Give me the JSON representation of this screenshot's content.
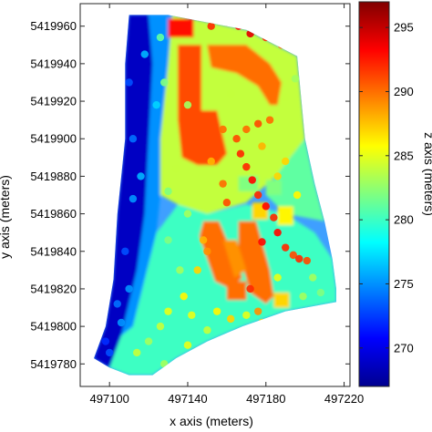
{
  "chart_data": {
    "type": "heatmap",
    "title": "",
    "xlabel": "x axis   (meters)",
    "ylabel": "y axis   (meters)",
    "colorbar_label": "z axis   (meters)",
    "xlim": [
      497085,
      497223
    ],
    "ylim": [
      5419768,
      5419972
    ],
    "x_ticks": [
      497100,
      497140,
      497180,
      497220
    ],
    "y_ticks": [
      5419780,
      5419800,
      5419820,
      5419840,
      5419860,
      5419880,
      5419900,
      5419920,
      5419940,
      5419960
    ],
    "colorbar_range": [
      267,
      297
    ],
    "colorbar_ticks": [
      270,
      275,
      280,
      285,
      290,
      295
    ],
    "colormap": "jet",
    "grid": false,
    "region_outline": [
      [
        497110,
        5419966
      ],
      [
        497130,
        5419966
      ],
      [
        497170,
        5419958
      ],
      [
        497196,
        5419944
      ],
      [
        497200,
        5419900
      ],
      [
        497205,
        5419876
      ],
      [
        497210,
        5419856
      ],
      [
        497214,
        5419836
      ],
      [
        497216,
        5419820
      ],
      [
        497216,
        5419813
      ],
      [
        497190,
        5419808
      ],
      [
        497168,
        5419800
      ],
      [
        497150,
        5419792
      ],
      [
        497134,
        5419783
      ],
      [
        497122,
        5419774
      ],
      [
        497110,
        5419774
      ],
      [
        497100,
        5419778
      ],
      [
        497092,
        5419783
      ],
      [
        497098,
        5419800
      ],
      [
        497102,
        5419825
      ],
      [
        497104,
        5419860
      ],
      [
        497108,
        5419900
      ],
      [
        497108,
        5419940
      ]
    ],
    "surface_patches": [
      {
        "shape": "poly",
        "z": 269,
        "pts": [
          [
            497110,
            5419966
          ],
          [
            497120,
            5419966
          ],
          [
            497122,
            5419940
          ],
          [
            497120,
            5419900
          ],
          [
            497118,
            5419860
          ],
          [
            497114,
            5419830
          ],
          [
            497106,
            5419795
          ],
          [
            497100,
            5419778
          ],
          [
            497092,
            5419783
          ],
          [
            497098,
            5419800
          ],
          [
            497102,
            5419825
          ],
          [
            497104,
            5419860
          ],
          [
            497108,
            5419900
          ],
          [
            497108,
            5419940
          ]
        ]
      },
      {
        "shape": "poly",
        "z": 275,
        "pts": [
          [
            497120,
            5419966
          ],
          [
            497132,
            5419966
          ],
          [
            497130,
            5419940
          ],
          [
            497126,
            5419900
          ],
          [
            497126,
            5419870
          ],
          [
            497124,
            5419850
          ],
          [
            497118,
            5419825
          ],
          [
            497112,
            5419800
          ],
          [
            497106,
            5419795
          ],
          [
            497114,
            5419830
          ],
          [
            497118,
            5419860
          ],
          [
            497120,
            5419900
          ],
          [
            497122,
            5419940
          ]
        ]
      },
      {
        "shape": "poly",
        "z": 280,
        "pts": [
          [
            497150,
            5419860
          ],
          [
            497170,
            5419865
          ],
          [
            497190,
            5419860
          ],
          [
            497205,
            5419850
          ],
          [
            497214,
            5419836
          ],
          [
            497216,
            5419820
          ],
          [
            497216,
            5419813
          ],
          [
            497190,
            5419808
          ],
          [
            497168,
            5419800
          ],
          [
            497150,
            5419792
          ],
          [
            497134,
            5419783
          ],
          [
            497122,
            5419774
          ],
          [
            497110,
            5419774
          ],
          [
            497100,
            5419778
          ],
          [
            497106,
            5419795
          ],
          [
            497112,
            5419800
          ],
          [
            497118,
            5419825
          ],
          [
            497124,
            5419850
          ],
          [
            497135,
            5419865
          ]
        ]
      },
      {
        "shape": "poly",
        "z": 284,
        "pts": [
          [
            497126,
            5419870
          ],
          [
            497135,
            5419865
          ],
          [
            497150,
            5419860
          ],
          [
            497170,
            5419866
          ],
          [
            497185,
            5419880
          ],
          [
            497200,
            5419900
          ],
          [
            497196,
            5419944
          ],
          [
            497170,
            5419958
          ],
          [
            497132,
            5419966
          ],
          [
            497130,
            5419940
          ],
          [
            497126,
            5419900
          ]
        ]
      },
      {
        "shape": "poly",
        "z": 281,
        "pts": [
          [
            497185,
            5419880
          ],
          [
            497200,
            5419900
          ],
          [
            497205,
            5419876
          ],
          [
            497210,
            5419856
          ],
          [
            497190,
            5419860
          ],
          [
            497180,
            5419870
          ]
        ]
      },
      {
        "shape": "rect",
        "z": 293,
        "x0": 497130,
        "y0": 5419954,
        "x1": 497143,
        "y1": 5419964
      },
      {
        "shape": "poly",
        "z": 291,
        "pts": [
          [
            497135,
            5419950
          ],
          [
            497147,
            5419950
          ],
          [
            497147,
            5419915
          ],
          [
            497155,
            5419915
          ],
          [
            497160,
            5419892
          ],
          [
            497155,
            5419886
          ],
          [
            497145,
            5419886
          ],
          [
            497137,
            5419890
          ],
          [
            497135,
            5419910
          ]
        ]
      },
      {
        "shape": "poly",
        "z": 290,
        "pts": [
          [
            497150,
            5419950
          ],
          [
            497170,
            5419950
          ],
          [
            497182,
            5419940
          ],
          [
            497188,
            5419930
          ],
          [
            497186,
            5419918
          ],
          [
            497182,
            5419918
          ],
          [
            497176,
            5419928
          ],
          [
            497165,
            5419935
          ],
          [
            497152,
            5419938
          ]
        ]
      },
      {
        "shape": "poly",
        "z": 290,
        "pts": [
          [
            497148,
            5419856
          ],
          [
            497156,
            5419856
          ],
          [
            497168,
            5419826
          ],
          [
            497162,
            5419820
          ],
          [
            497154,
            5419824
          ],
          [
            497146,
            5419848
          ]
        ]
      },
      {
        "shape": "poly",
        "z": 290,
        "pts": [
          [
            497166,
            5419856
          ],
          [
            497175,
            5419856
          ],
          [
            497182,
            5419830
          ],
          [
            497184,
            5419816
          ],
          [
            497180,
            5419812
          ],
          [
            497172,
            5419818
          ],
          [
            497166,
            5419840
          ]
        ]
      },
      {
        "shape": "poly",
        "z": 289,
        "pts": [
          [
            497158,
            5419846
          ],
          [
            497165,
            5419846
          ],
          [
            497170,
            5419830
          ],
          [
            497164,
            5419826
          ]
        ]
      },
      {
        "shape": "rect",
        "z": 290,
        "x0": 497160,
        "y0": 5419814,
        "x1": 497170,
        "y1": 5419824
      },
      {
        "shape": "rect",
        "z": 287,
        "x0": 497184,
        "y0": 5419810,
        "x1": 497192,
        "y1": 5419818
      },
      {
        "shape": "rect",
        "z": 286,
        "x0": 497186,
        "y0": 5419854,
        "x1": 497194,
        "y1": 5419864
      },
      {
        "shape": "rect",
        "z": 287,
        "x0": 497173,
        "y0": 5419857,
        "x1": 497181,
        "y1": 5419866
      },
      {
        "shape": "rect",
        "z": 282,
        "x0": 497166,
        "y0": 5419872,
        "x1": 497176,
        "y1": 5419880
      },
      {
        "shape": "rect",
        "z": 282,
        "x0": 497180,
        "y0": 5419870,
        "x1": 497188,
        "y1": 5419878
      }
    ],
    "points": [
      {
        "x": 497160,
        "y": 5419962,
        "z": 294
      },
      {
        "x": 497166,
        "y": 5419960,
        "z": 293
      },
      {
        "x": 497172,
        "y": 5419956,
        "z": 294
      },
      {
        "x": 497152,
        "y": 5419960,
        "z": 292
      },
      {
        "x": 497180,
        "y": 5419954,
        "z": 292
      },
      {
        "x": 497188,
        "y": 5419950,
        "z": 290
      },
      {
        "x": 497158,
        "y": 5419905,
        "z": 290
      },
      {
        "x": 497165,
        "y": 5419900,
        "z": 291
      },
      {
        "x": 497170,
        "y": 5419905,
        "z": 290
      },
      {
        "x": 497176,
        "y": 5419908,
        "z": 291
      },
      {
        "x": 497182,
        "y": 5419910,
        "z": 290
      },
      {
        "x": 497167,
        "y": 5419892,
        "z": 292
      },
      {
        "x": 497170,
        "y": 5419885,
        "z": 292
      },
      {
        "x": 497173,
        "y": 5419878,
        "z": 293
      },
      {
        "x": 497176,
        "y": 5419870,
        "z": 292
      },
      {
        "x": 497180,
        "y": 5419864,
        "z": 293
      },
      {
        "x": 497184,
        "y": 5419858,
        "z": 292
      },
      {
        "x": 497186,
        "y": 5419850,
        "z": 293
      },
      {
        "x": 497190,
        "y": 5419842,
        "z": 292
      },
      {
        "x": 497178,
        "y": 5419845,
        "z": 293
      },
      {
        "x": 497194,
        "y": 5419838,
        "z": 291
      },
      {
        "x": 497197,
        "y": 5419836,
        "z": 292
      },
      {
        "x": 497201,
        "y": 5419835,
        "z": 291
      },
      {
        "x": 497158,
        "y": 5419876,
        "z": 290
      },
      {
        "x": 497160,
        "y": 5419866,
        "z": 291
      },
      {
        "x": 497152,
        "y": 5419888,
        "z": 288
      },
      {
        "x": 497178,
        "y": 5419896,
        "z": 288
      },
      {
        "x": 497186,
        "y": 5419880,
        "z": 287
      },
      {
        "x": 497190,
        "y": 5419888,
        "z": 287
      },
      {
        "x": 497196,
        "y": 5419870,
        "z": 286
      },
      {
        "x": 497172,
        "y": 5419820,
        "z": 292
      },
      {
        "x": 497176,
        "y": 5419808,
        "z": 289
      },
      {
        "x": 497178,
        "y": 5419802,
        "z": 287
      },
      {
        "x": 497150,
        "y": 5419840,
        "z": 289
      },
      {
        "x": 497148,
        "y": 5419846,
        "z": 288
      },
      {
        "x": 497145,
        "y": 5419830,
        "z": 287
      },
      {
        "x": 497138,
        "y": 5419816,
        "z": 286
      },
      {
        "x": 497142,
        "y": 5419806,
        "z": 285
      },
      {
        "x": 497155,
        "y": 5419808,
        "z": 286
      },
      {
        "x": 497162,
        "y": 5419804,
        "z": 287
      },
      {
        "x": 497170,
        "y": 5419806,
        "z": 285
      },
      {
        "x": 497130,
        "y": 5419808,
        "z": 285
      },
      {
        "x": 497126,
        "y": 5419800,
        "z": 284
      },
      {
        "x": 497120,
        "y": 5419792,
        "z": 283
      },
      {
        "x": 497114,
        "y": 5419786,
        "z": 284
      },
      {
        "x": 497128,
        "y": 5419780,
        "z": 283
      },
      {
        "x": 497140,
        "y": 5419790,
        "z": 285
      },
      {
        "x": 497150,
        "y": 5419798,
        "z": 284
      },
      {
        "x": 497136,
        "y": 5419830,
        "z": 283
      },
      {
        "x": 497130,
        "y": 5419846,
        "z": 282
      },
      {
        "x": 497140,
        "y": 5419860,
        "z": 283
      },
      {
        "x": 497130,
        "y": 5419872,
        "z": 282
      },
      {
        "x": 497134,
        "y": 5419884,
        "z": 284
      },
      {
        "x": 497140,
        "y": 5419918,
        "z": 283
      },
      {
        "x": 497162,
        "y": 5419924,
        "z": 284
      },
      {
        "x": 497190,
        "y": 5419922,
        "z": 284
      },
      {
        "x": 497195,
        "y": 5419932,
        "z": 283
      },
      {
        "x": 497128,
        "y": 5419930,
        "z": 282
      },
      {
        "x": 497126,
        "y": 5419954,
        "z": 281
      },
      {
        "x": 497105,
        "y": 5419960,
        "z": 271
      },
      {
        "x": 497110,
        "y": 5419930,
        "z": 273
      },
      {
        "x": 497112,
        "y": 5419900,
        "z": 274
      },
      {
        "x": 497112,
        "y": 5419868,
        "z": 275
      },
      {
        "x": 497108,
        "y": 5419840,
        "z": 273
      },
      {
        "x": 497104,
        "y": 5419812,
        "z": 274
      },
      {
        "x": 497098,
        "y": 5419792,
        "z": 272
      },
      {
        "x": 497118,
        "y": 5419945,
        "z": 276
      },
      {
        "x": 497116,
        "y": 5419880,
        "z": 276
      },
      {
        "x": 497110,
        "y": 5419820,
        "z": 275
      },
      {
        "x": 497100,
        "y": 5419786,
        "z": 273
      },
      {
        "x": 497124,
        "y": 5419918,
        "z": 277
      },
      {
        "x": 497106,
        "y": 5419802,
        "z": 275
      },
      {
        "x": 497204,
        "y": 5419826,
        "z": 283
      },
      {
        "x": 497208,
        "y": 5419818,
        "z": 282
      },
      {
        "x": 497199,
        "y": 5419816,
        "z": 283
      },
      {
        "x": 497186,
        "y": 5419826,
        "z": 285
      }
    ]
  }
}
